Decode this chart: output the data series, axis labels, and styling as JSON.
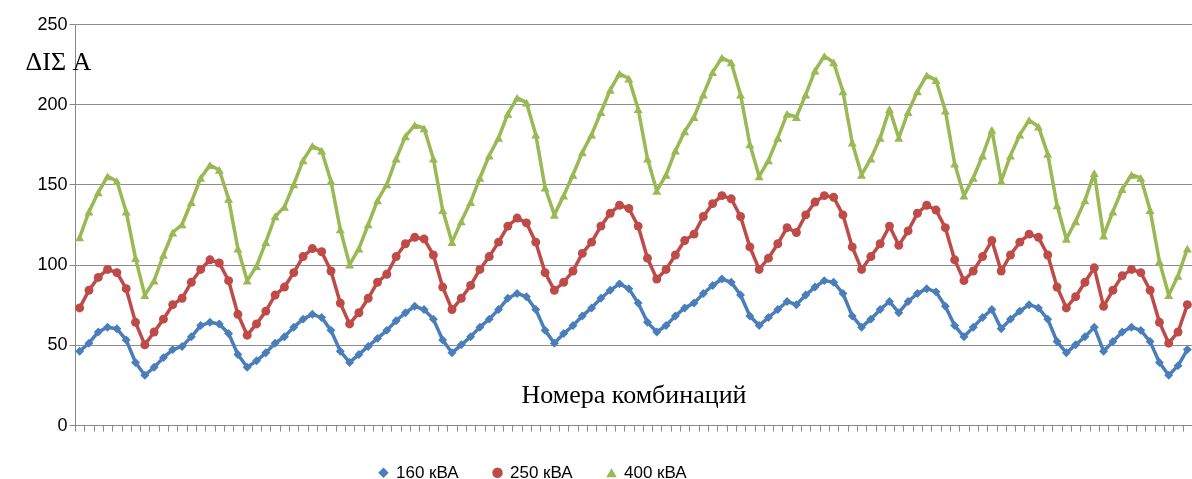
{
  "chart_data": {
    "type": "line",
    "xlabel": "Номера комбинаций",
    "ylabel": "ΔIΣ A",
    "categories": [
      null,
      null,
      null,
      null,
      null,
      null,
      null,
      null,
      null,
      null,
      null,
      null,
      null,
      null,
      null,
      null,
      null,
      null,
      null,
      null,
      null,
      null,
      null,
      null,
      null,
      null,
      null,
      null,
      null,
      null,
      null,
      null,
      null,
      null,
      null,
      null,
      null,
      null,
      null,
      null,
      null,
      null,
      null,
      null,
      null,
      null,
      null,
      null,
      null,
      null,
      null,
      null,
      null,
      null,
      null,
      null,
      null,
      null,
      null,
      null,
      null,
      null,
      null,
      null,
      null,
      null,
      null,
      null,
      null,
      null,
      null,
      null,
      null,
      null,
      null,
      null,
      null,
      null,
      null,
      null,
      null,
      null,
      null,
      null,
      null,
      null,
      null,
      null,
      null,
      null,
      null,
      null,
      null,
      null,
      null,
      null,
      null,
      null,
      null,
      null,
      null,
      null,
      null,
      null,
      null,
      null,
      null,
      null,
      null,
      null,
      null,
      null,
      null,
      null,
      null,
      null,
      null,
      null,
      null,
      null
    ],
    "series": [
      {
        "name": "160 кВА",
        "color": "#4a7ebb",
        "marker": "diamond",
        "values": [
          46,
          51,
          58,
          61,
          60,
          53,
          39,
          31,
          36,
          42,
          47,
          49,
          55,
          62,
          64,
          63,
          57,
          44,
          36,
          40,
          45,
          51,
          55,
          61,
          66,
          69,
          67,
          59,
          46,
          39,
          44,
          49,
          54,
          59,
          65,
          70,
          74,
          72,
          66,
          53,
          45,
          50,
          55,
          61,
          66,
          72,
          79,
          82,
          80,
          72,
          59,
          51,
          57,
          62,
          68,
          73,
          79,
          84,
          88,
          85,
          76,
          64,
          58,
          62,
          68,
          73,
          76,
          82,
          87,
          91,
          89,
          81,
          68,
          62,
          67,
          72,
          77,
          75,
          81,
          86,
          90,
          89,
          82,
          68,
          61,
          66,
          72,
          77,
          70,
          77,
          82,
          85,
          83,
          74,
          62,
          55,
          61,
          67,
          72,
          60,
          66,
          71,
          75,
          73,
          66,
          52,
          45,
          50,
          55,
          61,
          46,
          52,
          58,
          61,
          59,
          52,
          39,
          31,
          37,
          47
        ]
      },
      {
        "name": "250 кВА",
        "color": "#be4b48",
        "marker": "circle",
        "values": [
          73,
          84,
          92,
          97,
          95,
          85,
          64,
          50,
          58,
          66,
          75,
          79,
          89,
          97,
          103,
          101,
          90,
          69,
          56,
          63,
          71,
          81,
          86,
          95,
          105,
          110,
          108,
          96,
          76,
          63,
          70,
          79,
          89,
          94,
          105,
          113,
          117,
          116,
          106,
          86,
          72,
          79,
          87,
          97,
          105,
          114,
          124,
          129,
          126,
          114,
          95,
          84,
          89,
          96,
          107,
          114,
          124,
          132,
          137,
          135,
          124,
          104,
          91,
          97,
          106,
          115,
          119,
          130,
          138,
          143,
          141,
          130,
          111,
          97,
          104,
          113,
          123,
          120,
          131,
          139,
          143,
          142,
          131,
          111,
          97,
          105,
          113,
          124,
          112,
          121,
          132,
          137,
          134,
          123,
          103,
          90,
          96,
          105,
          115,
          96,
          106,
          114,
          119,
          117,
          106,
          86,
          73,
          80,
          89,
          98,
          74,
          84,
          93,
          97,
          95,
          84,
          64,
          51,
          58,
          75
        ]
      },
      {
        "name": "400 кВА",
        "color": "#98b954",
        "marker": "triangle",
        "values": [
          117,
          133,
          145,
          155,
          152,
          133,
          104,
          81,
          90,
          106,
          120,
          125,
          139,
          154,
          162,
          159,
          141,
          110,
          90,
          99,
          114,
          130,
          136,
          150,
          165,
          174,
          171,
          152,
          122,
          100,
          110,
          125,
          140,
          150,
          166,
          180,
          187,
          185,
          166,
          134,
          114,
          127,
          139,
          154,
          168,
          179,
          194,
          204,
          201,
          181,
          148,
          131,
          143,
          156,
          170,
          181,
          195,
          209,
          219,
          216,
          197,
          166,
          146,
          156,
          171,
          183,
          192,
          206,
          220,
          229,
          226,
          206,
          175,
          155,
          165,
          179,
          194,
          192,
          206,
          221,
          230,
          226,
          208,
          176,
          156,
          166,
          179,
          197,
          179,
          195,
          208,
          218,
          215,
          196,
          163,
          143,
          154,
          168,
          184,
          152,
          168,
          181,
          190,
          186,
          169,
          137,
          116,
          127,
          140,
          157,
          118,
          133,
          147,
          156,
          154,
          134,
          102,
          81,
          93,
          110
        ]
      }
    ],
    "ylim": [
      0,
      250
    ],
    "yticks": [
      0,
      50,
      100,
      150,
      200,
      250
    ],
    "grid": "y",
    "legend": "bottom",
    "line_style": "solid"
  }
}
